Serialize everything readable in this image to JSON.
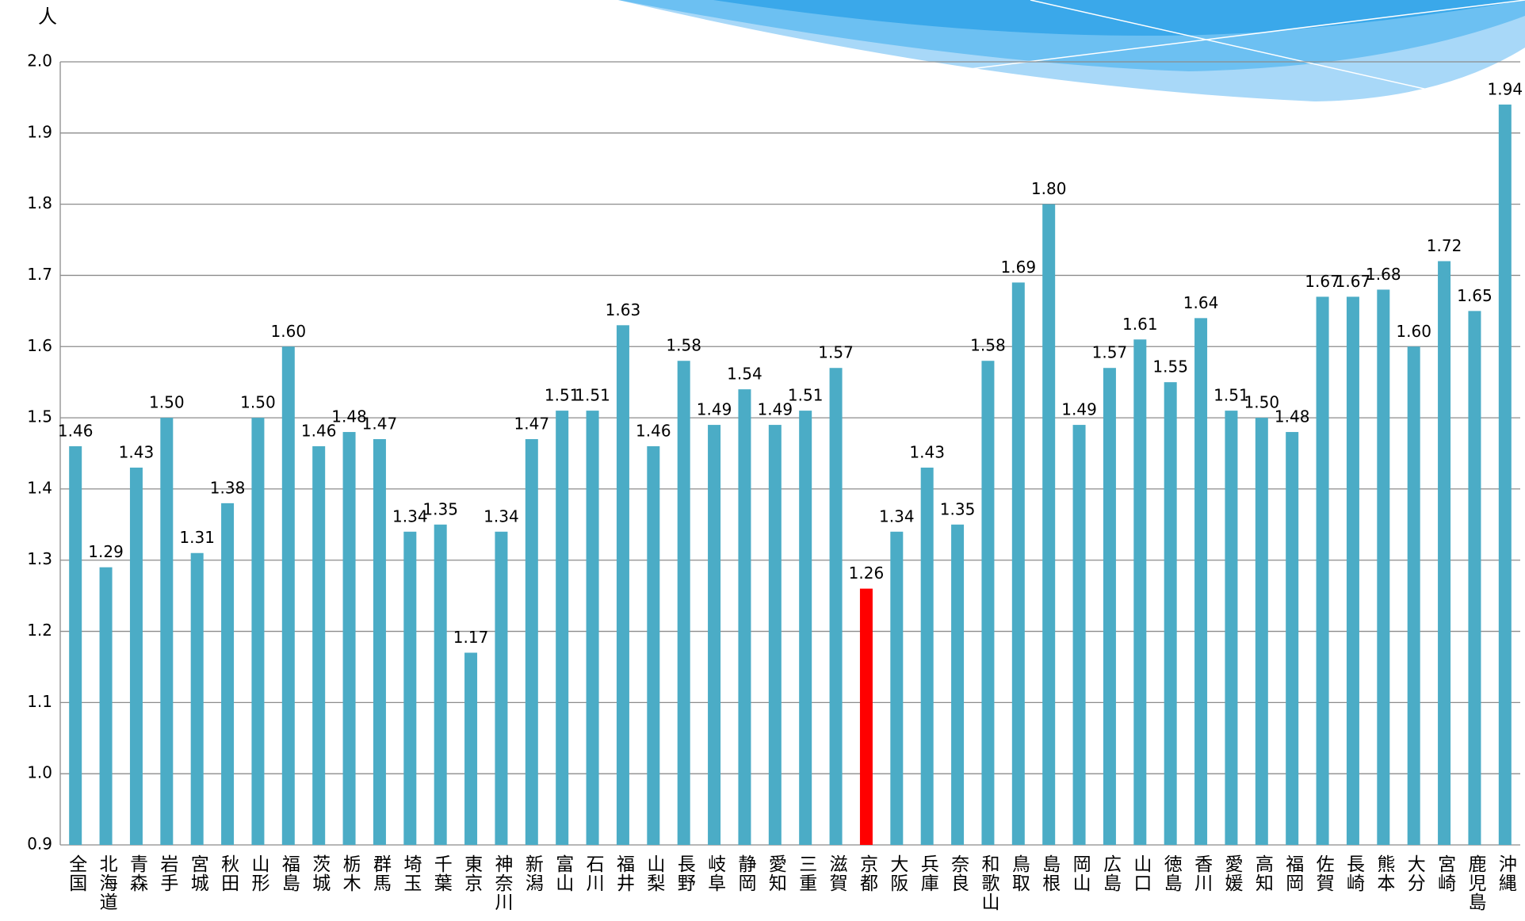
{
  "chart_data": {
    "type": "bar",
    "ylabel": "人",
    "categories": [
      "全国",
      "北海道",
      "青森",
      "岩手",
      "宮城",
      "秋田",
      "山形",
      "福島",
      "茨城",
      "栃木",
      "群馬",
      "埼玉",
      "千葉",
      "東京",
      "神奈川",
      "新潟",
      "富山",
      "石川",
      "福井",
      "山梨",
      "長野",
      "岐阜",
      "静岡",
      "愛知",
      "三重",
      "滋賀",
      "京都",
      "大阪",
      "兵庫",
      "奈良",
      "和歌山",
      "鳥取",
      "島根",
      "岡山",
      "広島",
      "山口",
      "徳島",
      "香川",
      "愛媛",
      "高知",
      "福岡",
      "佐賀",
      "長崎",
      "熊本",
      "大分",
      "宮崎",
      "鹿児島",
      "沖縄"
    ],
    "values": [
      1.46,
      1.29,
      1.43,
      1.5,
      1.31,
      1.38,
      1.5,
      1.6,
      1.46,
      1.48,
      1.47,
      1.34,
      1.35,
      1.17,
      1.34,
      1.47,
      1.51,
      1.51,
      1.63,
      1.46,
      1.58,
      1.49,
      1.54,
      1.49,
      1.51,
      1.57,
      1.26,
      1.34,
      1.43,
      1.35,
      1.58,
      1.69,
      1.8,
      1.49,
      1.57,
      1.61,
      1.55,
      1.64,
      1.51,
      1.5,
      1.48,
      1.67,
      1.67,
      1.68,
      1.6,
      1.72,
      1.65,
      1.94
    ],
    "value_labels": [
      "1.46",
      "1.29",
      "1.43",
      "1.50",
      "1.31",
      "1.38",
      "1.50",
      "1.60",
      "1.46",
      "1.48",
      "1.47",
      "1.34",
      "1.35",
      "1.17",
      "1.34",
      "1.47",
      "1.51",
      "1.51",
      "1.63",
      "1.46",
      "1.58",
      "1.49",
      "1.54",
      "1.49",
      "1.51",
      "1.57",
      "1.26",
      "1.34",
      "1.43",
      "1.35",
      "1.58",
      "1.69",
      "1.80",
      "1.49",
      "1.57",
      "1.61",
      "1.55",
      "1.64",
      "1.51",
      "1.50",
      "1.48",
      "1.67",
      "1.67",
      "1.68",
      "1.60",
      "1.72",
      "1.65",
      "1.94"
    ],
    "colors": [
      "#4bacc6",
      "#4bacc6",
      "#4bacc6",
      "#4bacc6",
      "#4bacc6",
      "#4bacc6",
      "#4bacc6",
      "#4bacc6",
      "#4bacc6",
      "#4bacc6",
      "#4bacc6",
      "#4bacc6",
      "#4bacc6",
      "#4bacc6",
      "#4bacc6",
      "#4bacc6",
      "#4bacc6",
      "#4bacc6",
      "#4bacc6",
      "#4bacc6",
      "#4bacc6",
      "#4bacc6",
      "#4bacc6",
      "#4bacc6",
      "#4bacc6",
      "#4bacc6",
      "#ff0000",
      "#4bacc6",
      "#4bacc6",
      "#4bacc6",
      "#4bacc6",
      "#4bacc6",
      "#4bacc6",
      "#4bacc6",
      "#4bacc6",
      "#4bacc6",
      "#4bacc6",
      "#4bacc6",
      "#4bacc6",
      "#4bacc6",
      "#4bacc6",
      "#4bacc6",
      "#4bacc6",
      "#4bacc6",
      "#4bacc6",
      "#4bacc6",
      "#4bacc6",
      "#4bacc6"
    ],
    "ylim": [
      0.9,
      2.0
    ],
    "yticks": [
      0.9,
      {
        "value": 1.0,
        "label": "1.0"
      },
      1.1,
      1.2,
      1.3,
      1.4,
      1.5,
      1.6,
      1.7,
      1.8,
      1.9,
      {
        "value": 2.0,
        "label": "2.0"
      }
    ],
    "grid": true
  }
}
